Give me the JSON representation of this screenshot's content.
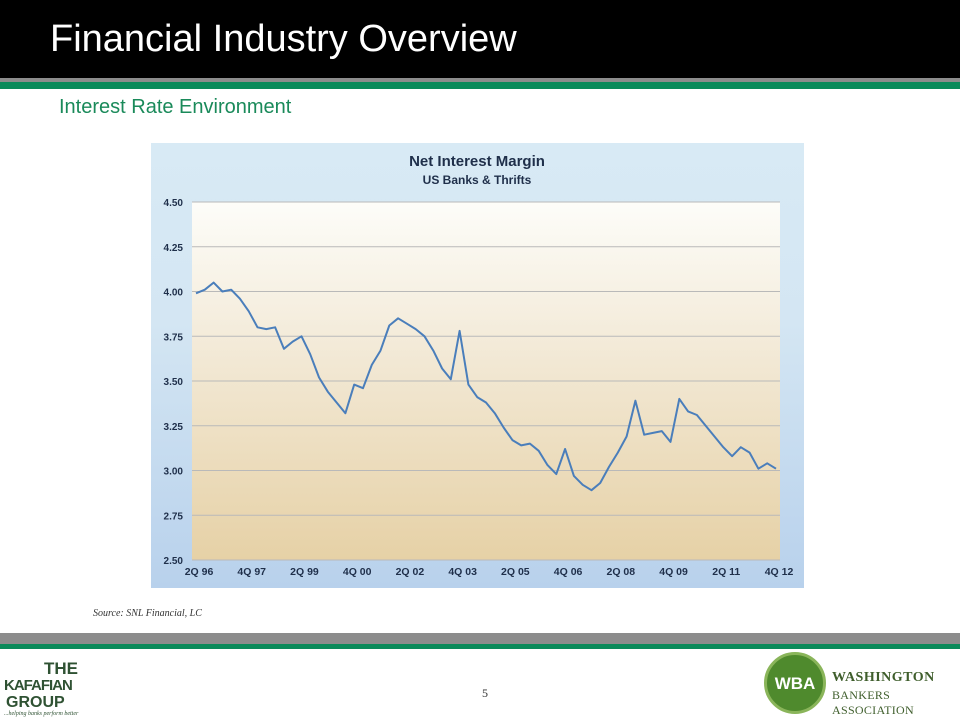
{
  "slide": {
    "title": "Financial Industry Overview",
    "subtitle": "Interest Rate Environment",
    "source": "Source: SNL Financial, LC",
    "page_number": "5"
  },
  "logos": {
    "left": {
      "line1": "THE",
      "line2": "KAFAFIAN",
      "line3": "GROUP",
      "tagline": "...helping banks perform better"
    },
    "right": {
      "mark": "WBA",
      "name_line1": "WASHINGTON",
      "name_line2": "BANKERS ASSOCIATION"
    }
  },
  "colors": {
    "header_bg": "#000000",
    "accent_green": "#0a8a5a",
    "line": "#4a7ebb"
  },
  "chart_data": {
    "type": "line",
    "title": "Net Interest Margin",
    "subtitle": "US Banks & Thrifts",
    "ylim": [
      2.5,
      4.5
    ],
    "yticks": [
      "4.50",
      "4.25",
      "4.00",
      "3.75",
      "3.50",
      "3.25",
      "3.00",
      "2.75",
      "2.50"
    ],
    "x_tick_labels": [
      "2Q 96",
      "4Q 97",
      "2Q 99",
      "4Q 00",
      "2Q 02",
      "4Q 03",
      "2Q 05",
      "4Q 06",
      "2Q 08",
      "4Q 09",
      "2Q 11",
      "4Q 12"
    ],
    "grid": "horizontal",
    "series": [
      {
        "values": [
          3.99,
          4.01,
          4.05,
          4.0,
          4.01,
          3.96,
          3.89,
          3.8,
          3.79,
          3.8,
          3.68,
          3.72,
          3.75,
          3.65,
          3.52,
          3.44,
          3.38,
          3.32,
          3.48,
          3.46,
          3.59,
          3.67,
          3.81,
          3.85,
          3.82,
          3.79,
          3.75,
          3.67,
          3.57,
          3.51,
          3.78,
          3.48,
          3.41,
          3.38,
          3.32,
          3.24,
          3.17,
          3.14,
          3.15,
          3.11,
          3.03,
          2.98,
          3.12,
          2.97,
          2.92,
          2.89,
          2.93,
          3.02,
          3.1,
          3.19,
          3.39,
          3.2,
          3.21,
          3.22,
          3.16,
          3.4,
          3.33,
          3.31,
          3.25,
          3.19,
          3.13,
          3.08,
          3.13,
          3.1,
          3.01,
          3.04,
          3.01
        ]
      }
    ]
  }
}
